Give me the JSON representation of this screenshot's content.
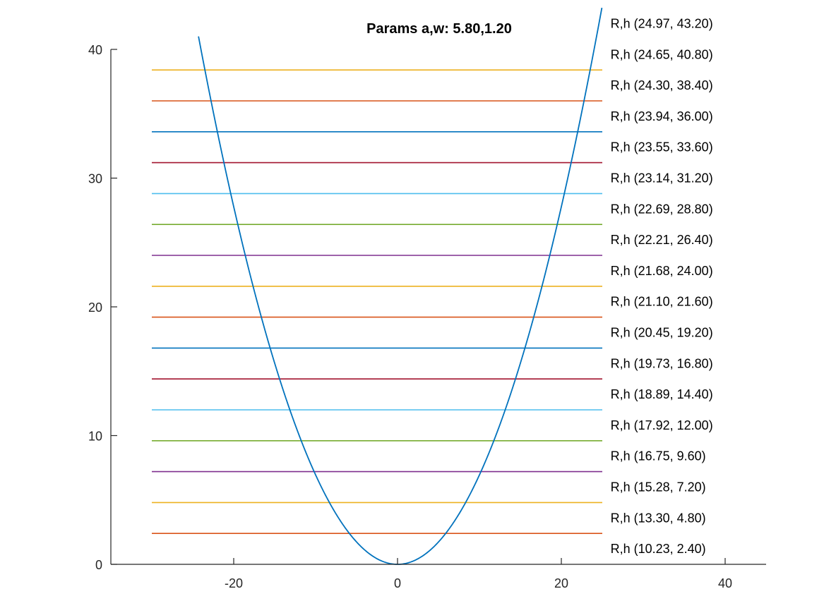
{
  "chart_data": {
    "type": "line",
    "title": "Params a,w: 5.80,1.20",
    "xlabel": "",
    "ylabel": "",
    "xlim": [
      -35,
      45
    ],
    "ylim": [
      0,
      40
    ],
    "xticks": [
      -20,
      0,
      20,
      40
    ],
    "yticks": [
      0,
      10,
      20,
      30,
      40
    ],
    "grid": false,
    "curve": {
      "name": "parabola",
      "equation": "y = x^2 / 14.4",
      "x_range": [
        -24.3,
        24.95
      ],
      "color": "#0072BD"
    },
    "levels": [
      {
        "y": 2.4,
        "x_range": [
          -30,
          25
        ],
        "color": "#D95319",
        "label": "R,h (10.23, 2.40)"
      },
      {
        "y": 4.8,
        "x_range": [
          -30,
          25
        ],
        "color": "#EDB120",
        "label": "R,h (13.30, 4.80)"
      },
      {
        "y": 7.2,
        "x_range": [
          -30,
          25
        ],
        "color": "#7E2F8E",
        "label": "R,h (15.28, 7.20)"
      },
      {
        "y": 9.6,
        "x_range": [
          -30,
          25
        ],
        "color": "#77AC30",
        "label": "R,h (16.75, 9.60)"
      },
      {
        "y": 12.0,
        "x_range": [
          -30,
          25
        ],
        "color": "#4DBEEE",
        "label": "R,h (17.92, 12.00)"
      },
      {
        "y": 14.4,
        "x_range": [
          -30,
          25
        ],
        "color": "#A2142F",
        "label": "R,h (18.89, 14.40)"
      },
      {
        "y": 16.8,
        "x_range": [
          -30,
          25
        ],
        "color": "#0072BD",
        "label": "R,h (19.73, 16.80)"
      },
      {
        "y": 19.2,
        "x_range": [
          -30,
          25
        ],
        "color": "#D95319",
        "label": "R,h (20.45, 19.20)"
      },
      {
        "y": 21.6,
        "x_range": [
          -30,
          25
        ],
        "color": "#EDB120",
        "label": "R,h (21.10, 21.60)"
      },
      {
        "y": 24.0,
        "x_range": [
          -30,
          25
        ],
        "color": "#7E2F8E",
        "label": "R,h (21.68, 24.00)"
      },
      {
        "y": 26.4,
        "x_range": [
          -30,
          25
        ],
        "color": "#77AC30",
        "label": "R,h (22.21, 26.40)"
      },
      {
        "y": 28.8,
        "x_range": [
          -30,
          25
        ],
        "color": "#4DBEEE",
        "label": "R,h (22.69, 28.80)"
      },
      {
        "y": 31.2,
        "x_range": [
          -30,
          25
        ],
        "color": "#A2142F",
        "label": "R,h (23.14, 31.20)"
      },
      {
        "y": 33.6,
        "x_range": [
          -30,
          25
        ],
        "color": "#0072BD",
        "label": "R,h (23.55, 33.60)"
      },
      {
        "y": 36.0,
        "x_range": [
          -30,
          25
        ],
        "color": "#D95319",
        "label": "R,h (23.94, 36.00)"
      },
      {
        "y": 38.4,
        "x_range": [
          -30,
          25
        ],
        "color": "#EDB120",
        "label": "R,h (24.30, 38.40)"
      },
      {
        "y": 40.8,
        "x_range": [
          -30,
          25
        ],
        "color": "#7E2F8E",
        "label": "R,h (24.65, 40.80)"
      },
      {
        "y": 43.2,
        "x_range": [
          -30,
          25
        ],
        "color": "#77AC30",
        "label": "R,h (24.97, 43.20)"
      }
    ],
    "annotation_x": 26,
    "axis_color": "#262626"
  }
}
